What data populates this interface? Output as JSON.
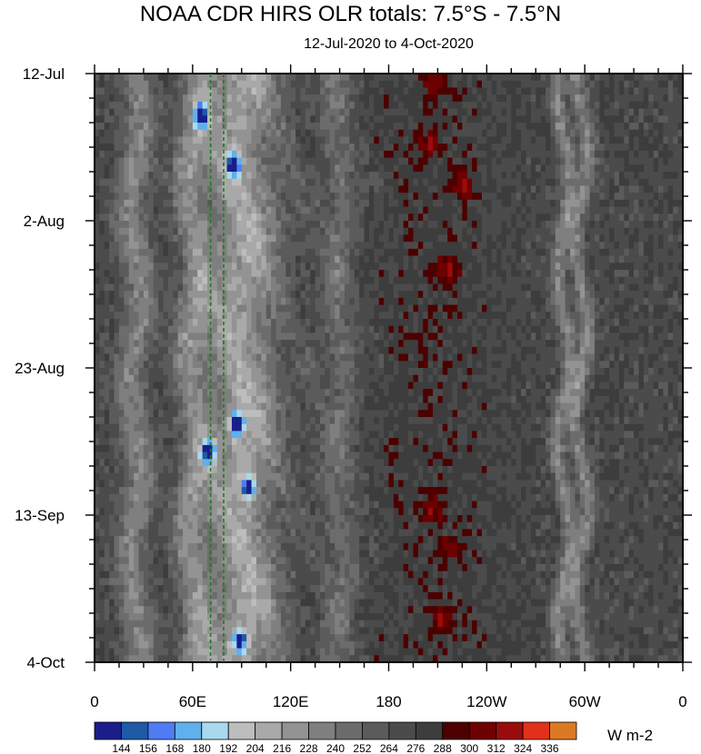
{
  "chart_data": {
    "type": "heatmap",
    "title": "NOAA CDR HIRS OLR totals: 7.5°S - 7.5°N",
    "subtitle": "12-Jul-2020 to 4-Oct-2020",
    "x_axis": {
      "ticks": [
        "0",
        "60E",
        "120E",
        "180",
        "120W",
        "60W",
        "0"
      ],
      "tick_longitudes": [
        0,
        60,
        120,
        180,
        240,
        300,
        360
      ],
      "range": [
        0,
        360
      ]
    },
    "y_axis": {
      "ticks": [
        "12-Jul",
        "2-Aug",
        "23-Aug",
        "13-Sep",
        "4-Oct"
      ],
      "tick_days": [
        0,
        21,
        42,
        63,
        84
      ],
      "range": [
        0,
        84
      ],
      "reversed": true
    },
    "colorbar": {
      "levels": [
        "144",
        "156",
        "168",
        "180",
        "192",
        "204",
        "216",
        "228",
        "240",
        "252",
        "264",
        "276",
        "288",
        "300",
        "312",
        "324",
        "336"
      ],
      "colors": [
        "#1a1d8a",
        "#1e5aa6",
        "#4f7cf3",
        "#5fb0ec",
        "#a9d9ee",
        "#bdbdbd",
        "#a9a9a9",
        "#939393",
        "#7f7f7f",
        "#6c6c6c",
        "#5b5b5b",
        "#4b4b4b",
        "#3d3d3d",
        "#4d0000",
        "#6d0000",
        "#9c0b0b",
        "#e2311a",
        "#dc7a24"
      ],
      "units": "W m-2"
    },
    "reference_lines": [
      {
        "longitude": 71,
        "style": "dashed",
        "color": "#1f7a1f"
      },
      {
        "longitude": 79,
        "style": "dashed",
        "color": "#1f7a1f"
      }
    ],
    "convective_bands_lon": [
      25,
      60,
      90,
      150,
      287,
      298
    ],
    "deep_convection_events": [
      {
        "lon": 65,
        "day": 6,
        "olr": 156
      },
      {
        "lon": 85,
        "day": 13,
        "olr": 168
      },
      {
        "lon": 87,
        "day": 50,
        "olr": 144
      },
      {
        "lon": 94,
        "day": 59,
        "olr": 168
      },
      {
        "lon": 70,
        "day": 54,
        "olr": 168
      },
      {
        "lon": 89,
        "day": 81,
        "olr": 180
      }
    ],
    "high_olr_regions": [
      {
        "lon": 209,
        "day": 1,
        "olr": 300
      },
      {
        "lon": 203,
        "day": 10,
        "olr": 300
      },
      {
        "lon": 226,
        "day": 16,
        "olr": 300
      },
      {
        "lon": 217,
        "day": 28,
        "olr": 300
      },
      {
        "lon": 207,
        "day": 62,
        "olr": 300
      },
      {
        "lon": 219,
        "day": 68,
        "olr": 300
      },
      {
        "lon": 213,
        "day": 78,
        "olr": 300
      }
    ]
  }
}
